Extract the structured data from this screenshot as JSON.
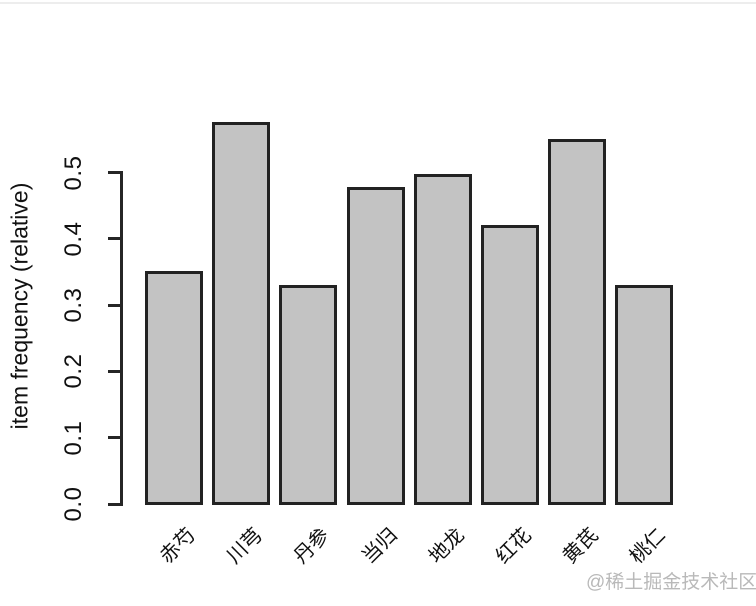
{
  "figure": {
    "watermark": "@稀土掘金技术社区"
  },
  "chart_data": {
    "type": "bar",
    "title": "",
    "xlabel": "",
    "ylabel": "item frequency (relative)",
    "categories": [
      "赤芍",
      "川芎",
      "丹参",
      "当归",
      "地龙",
      "红花",
      "黄芪",
      "桃仁"
    ],
    "values": [
      0.348,
      0.573,
      0.328,
      0.475,
      0.494,
      0.418,
      0.547,
      0.328
    ],
    "ylim": [
      0.0,
      0.6
    ],
    "yticks": [
      0.0,
      0.1,
      0.2,
      0.3,
      0.4,
      0.5
    ],
    "ytick_labels": [
      "0.0",
      "0.1",
      "0.2",
      "0.3",
      "0.4",
      "0.5"
    ],
    "grid": false,
    "legend": null,
    "x_label_rotation_deg": 45,
    "y_tick_label_rotation_deg": 90,
    "bar_fill_color": "#c3c3c3",
    "bar_border_color": "#222222",
    "axis_color": "#262626",
    "watermark_color": "#b9b9b9"
  }
}
